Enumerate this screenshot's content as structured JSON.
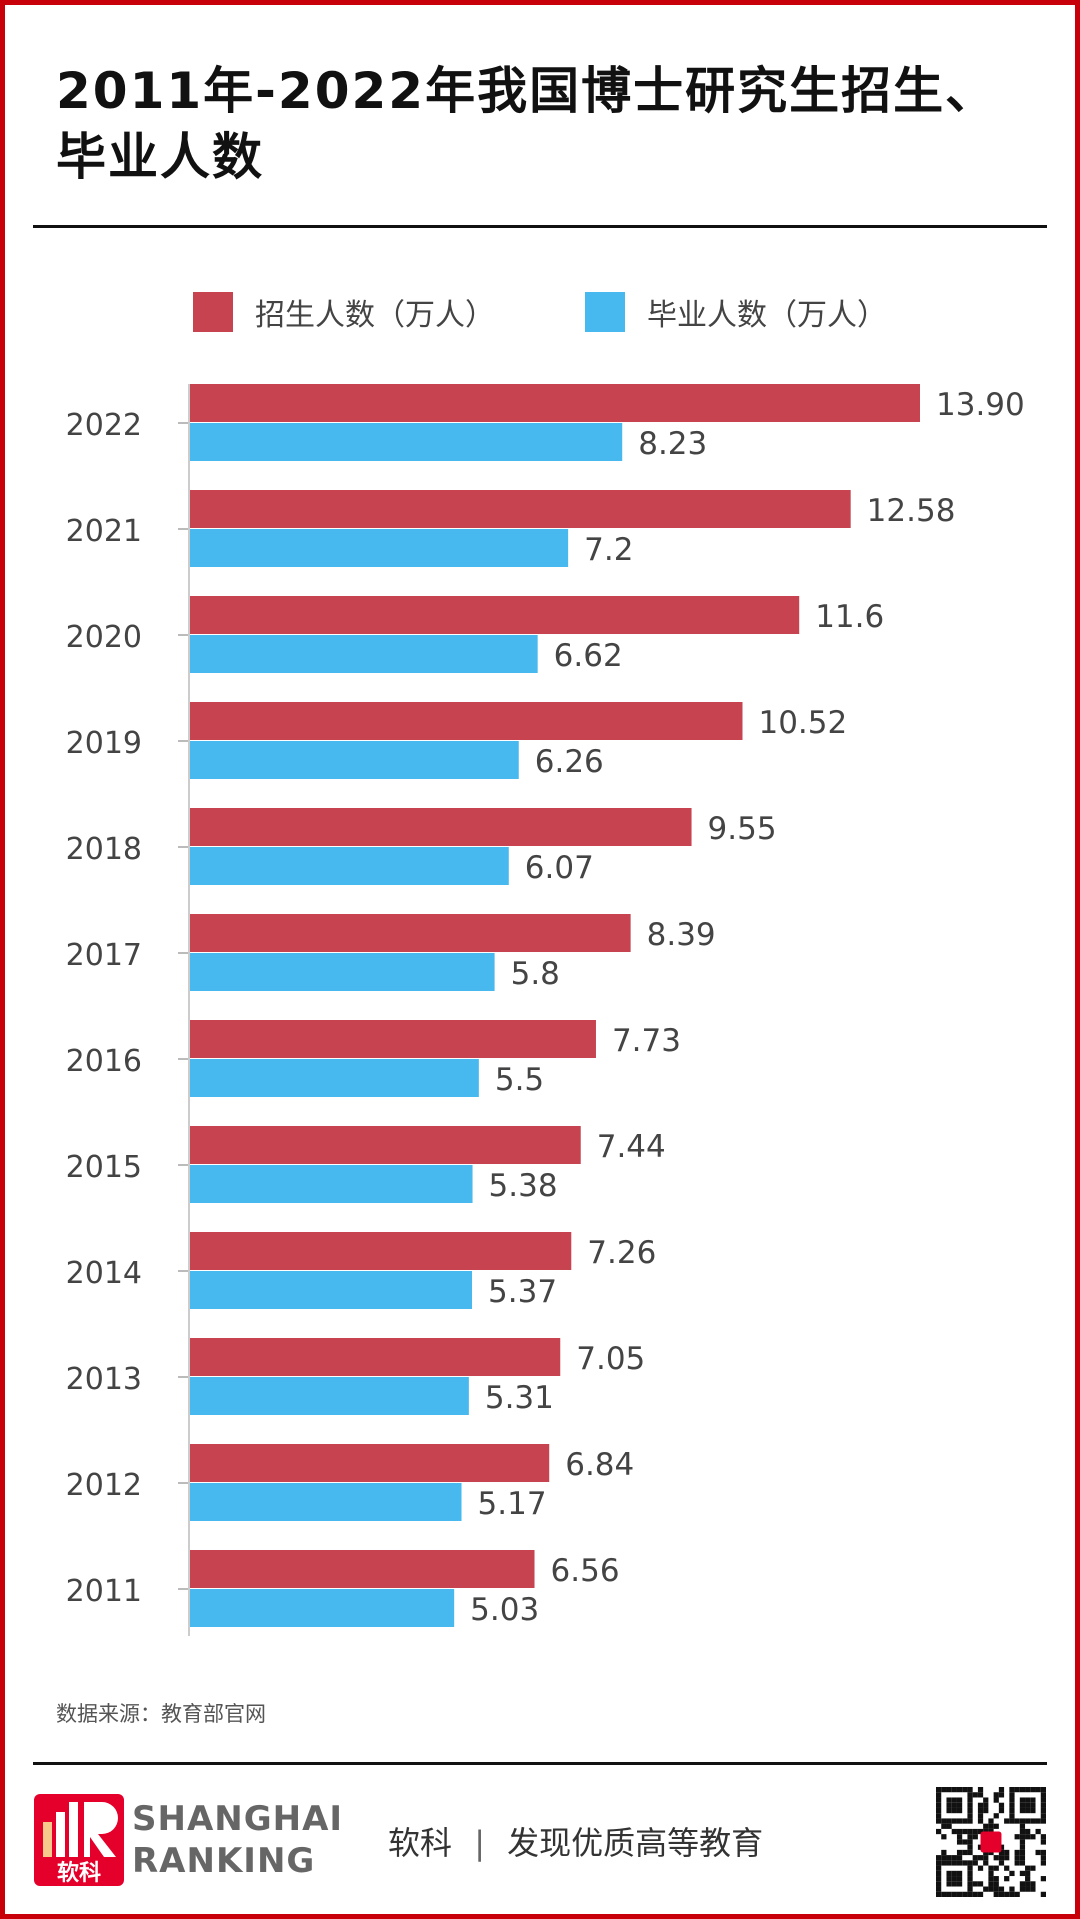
{
  "title": "2011年-2022年我国博士研究生招生、毕业人数",
  "source": "数据来源：教育部官网",
  "footer": {
    "brand_line1": "SHANGHAI",
    "brand_line2": "RANKING",
    "logo_text": "软科",
    "slogan_left": "软科",
    "slogan_right": "发现优质高等教育"
  },
  "colors": {
    "enroll": "#c6434f",
    "graduate": "#48b9ef",
    "border": "#c8000a"
  },
  "chart_data": {
    "type": "bar",
    "orientation": "horizontal",
    "categories": [
      "2022",
      "2021",
      "2020",
      "2019",
      "2018",
      "2017",
      "2016",
      "2015",
      "2014",
      "2013",
      "2012",
      "2011"
    ],
    "series": [
      {
        "name": "招生人数（万人）",
        "labels": [
          "13.90",
          "12.58",
          "11.6",
          "10.52",
          "9.55",
          "8.39",
          "7.73",
          "7.44",
          "7.26",
          "7.05",
          "6.84",
          "6.56"
        ],
        "values": [
          13.9,
          12.58,
          11.6,
          10.52,
          9.55,
          8.39,
          7.73,
          7.44,
          7.26,
          7.05,
          6.84,
          6.56
        ]
      },
      {
        "name": "毕业人数（万人）",
        "labels": [
          "8.23",
          "7.2",
          "6.62",
          "6.26",
          "6.07",
          "5.8",
          "5.5",
          "5.38",
          "5.37",
          "5.31",
          "5.17",
          "5.03"
        ],
        "values": [
          8.23,
          7.2,
          6.62,
          6.26,
          6.07,
          5.8,
          5.5,
          5.38,
          5.37,
          5.31,
          5.17,
          5.03
        ]
      }
    ],
    "legend": "top-center",
    "grid": false,
    "xlim": [
      0,
      13.9
    ]
  }
}
